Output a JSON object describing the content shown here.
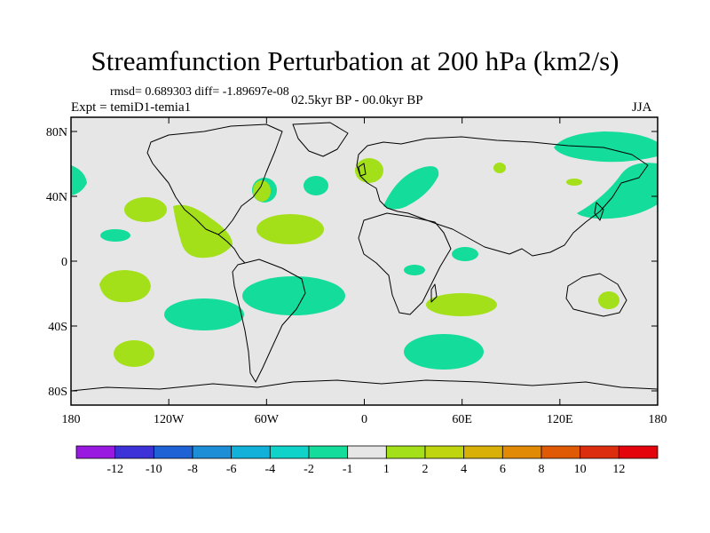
{
  "header": {
    "title": "Streamfunction Perturbation at 200 hPa (km2/s)",
    "stats": "rmsd= 0.689303 diff= -1.89697e-08",
    "experiment": "Expt = temiD1-temia1",
    "period": "02.5kyr BP - 00.0kyr BP",
    "season": "JJA"
  },
  "axes": {
    "x_ticks": [
      "180",
      "120W",
      "60W",
      "0",
      "60E",
      "120E",
      "180"
    ],
    "y_ticks": [
      "80N",
      "40N",
      "0",
      "40S",
      "80S"
    ]
  },
  "legend": {
    "labels": [
      "-12",
      "-10",
      "-8",
      "-6",
      "-4",
      "-2",
      "-1",
      "1",
      "2",
      "4",
      "6",
      "8",
      "10",
      "12"
    ],
    "colors": [
      "#9a19e0",
      "#3c32d8",
      "#1f62d6",
      "#1c8ed8",
      "#12b1d9",
      "#0fd3c9",
      "#14dc9a",
      "#e6e6e6",
      "#a3e01a",
      "#bfd60e",
      "#d9b007",
      "#e08a06",
      "#e05a06",
      "#dc2e0e",
      "#e3040c"
    ]
  },
  "map_colors": {
    "background": "#e6e6e6",
    "negative": "#14dc9a",
    "positive": "#a3e01a"
  }
}
